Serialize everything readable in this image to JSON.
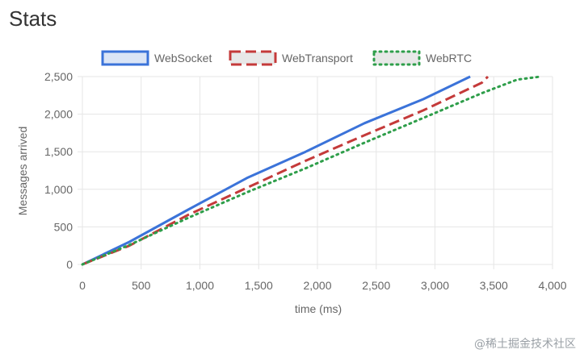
{
  "page": {
    "title": "Stats",
    "watermark": "@稀土掘金技术社区"
  },
  "chart_data": {
    "type": "line",
    "xlabel": "time (ms)",
    "ylabel": "Messages arrived",
    "xlim": [
      0,
      4000
    ],
    "ylim": [
      0,
      2500
    ],
    "xticks": [
      0,
      500,
      1000,
      1500,
      2000,
      2500,
      3000,
      3500,
      4000
    ],
    "yticks": [
      0,
      500,
      1000,
      1500,
      2000,
      2500
    ],
    "xtick_labels": [
      "0",
      "500",
      "1,000",
      "1,500",
      "2,000",
      "2,500",
      "3,000",
      "3,500",
      "4,000"
    ],
    "ytick_labels": [
      "0",
      "500",
      "1,000",
      "1,500",
      "2,000",
      "2,500"
    ],
    "grid": true,
    "legend_position": "top-center",
    "series": [
      {
        "name": "WebSocket",
        "style": "solid",
        "color": "#3b73d9",
        "fill": "#dbe5f6",
        "x": [
          0,
          400,
          900,
          1400,
          1900,
          2400,
          2900,
          3300
        ],
        "y": [
          0,
          300,
          730,
          1150,
          1500,
          1880,
          2200,
          2500
        ]
      },
      {
        "name": "WebTransport",
        "style": "dashed",
        "color": "#c43a3a",
        "fill": "#e8e8e8",
        "x": [
          0,
          400,
          900,
          1400,
          1900,
          2400,
          2900,
          3400,
          3450
        ],
        "y": [
          0,
          250,
          660,
          1020,
          1380,
          1720,
          2050,
          2420,
          2500
        ]
      },
      {
        "name": "WebRTC",
        "style": "dotted",
        "color": "#2e9e4a",
        "fill": "#e8e8e8",
        "x": [
          0,
          400,
          900,
          1400,
          1900,
          2400,
          2900,
          3400,
          3700,
          3900
        ],
        "y": [
          0,
          260,
          620,
          960,
          1280,
          1620,
          1950,
          2280,
          2460,
          2500
        ]
      }
    ]
  }
}
